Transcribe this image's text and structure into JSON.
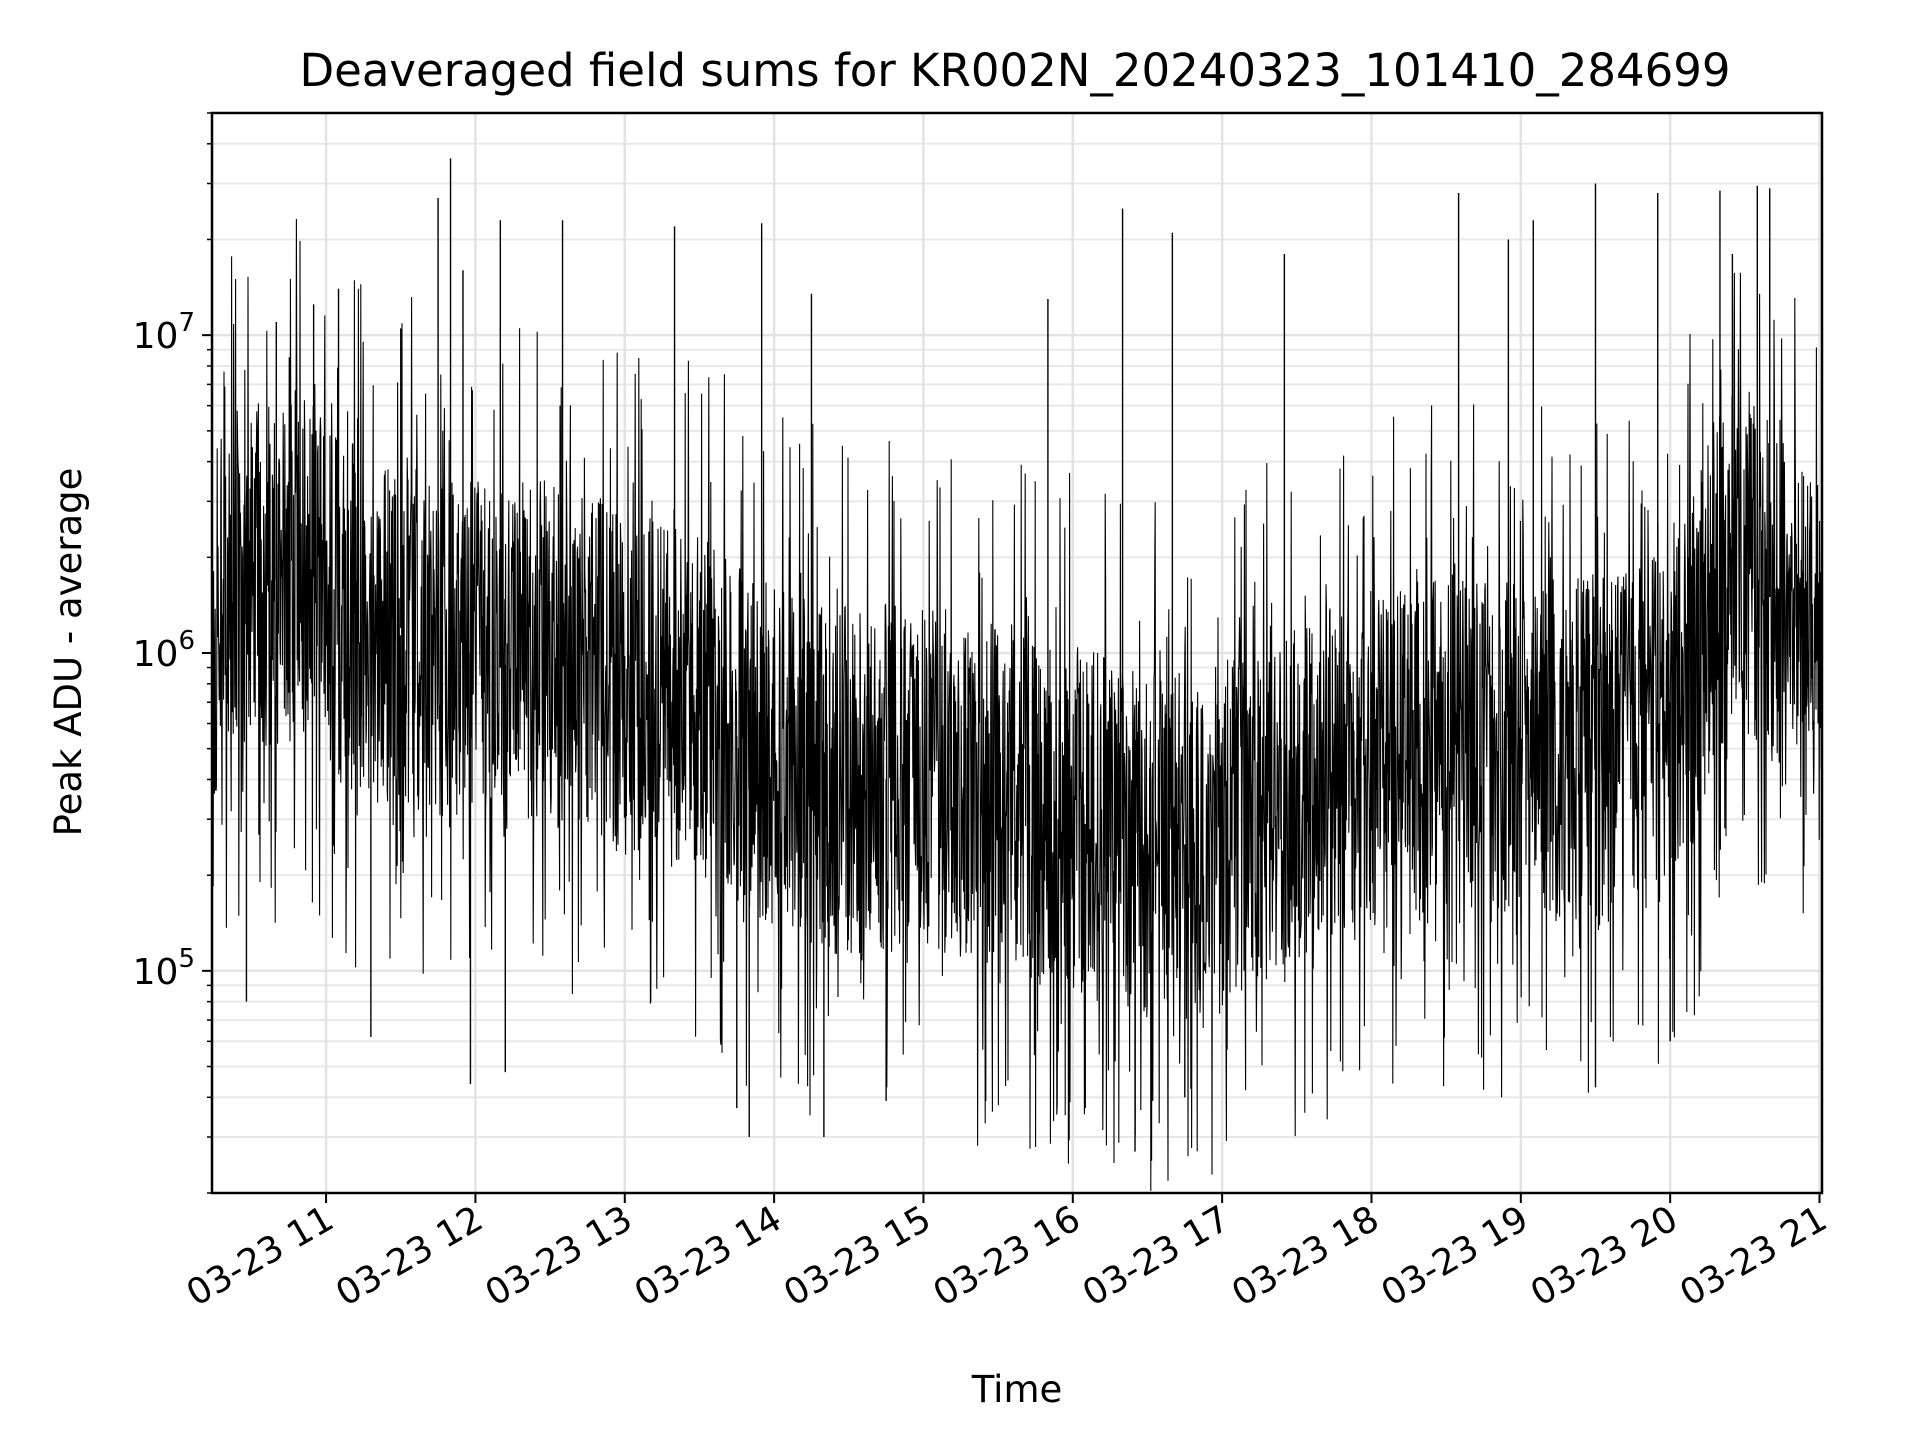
{
  "chart_data": {
    "type": "line",
    "title": "Deaveraged field sums for KR002N_20240323_101410_284699",
    "xlabel": "Time",
    "ylabel": "Peak ADU - average",
    "x_axis": {
      "type": "time",
      "start": "2024-03-23T10:14:10",
      "end": "2024-03-23T21:01:00"
    },
    "y_axis": {
      "scale": "log",
      "ylim": [
        20000,
        50000000
      ]
    },
    "grid": true,
    "legend": "none",
    "line_color": "#000000",
    "x_ticks": [
      {
        "value": "2024-03-23T11:00:00",
        "label": "03-23 11"
      },
      {
        "value": "2024-03-23T12:00:00",
        "label": "03-23 12"
      },
      {
        "value": "2024-03-23T13:00:00",
        "label": "03-23 13"
      },
      {
        "value": "2024-03-23T14:00:00",
        "label": "03-23 14"
      },
      {
        "value": "2024-03-23T15:00:00",
        "label": "03-23 15"
      },
      {
        "value": "2024-03-23T16:00:00",
        "label": "03-23 16"
      },
      {
        "value": "2024-03-23T17:00:00",
        "label": "03-23 17"
      },
      {
        "value": "2024-03-23T18:00:00",
        "label": "03-23 18"
      },
      {
        "value": "2024-03-23T19:00:00",
        "label": "03-23 19"
      },
      {
        "value": "2024-03-23T20:00:00",
        "label": "03-23 20"
      },
      {
        "value": "2024-03-23T21:00:00",
        "label": "03-23 21"
      }
    ],
    "y_ticks": [
      {
        "value": 100000,
        "base": "10",
        "exp": "5"
      },
      {
        "value": 1000000,
        "base": "10",
        "exp": "6"
      },
      {
        "value": 10000000,
        "base": "10",
        "exp": "7"
      }
    ],
    "series": [
      {
        "x": [
          "2024-03-23T10:14",
          "2024-03-23T10:20",
          "2024-03-23T10:30",
          "2024-03-23T10:40",
          "2024-03-23T10:50",
          "2024-03-23T11:00",
          "2024-03-23T11:10",
          "2024-03-23T11:20",
          "2024-03-23T11:30",
          "2024-03-23T11:40",
          "2024-03-23T11:50",
          "2024-03-23T12:00",
          "2024-03-23T12:10",
          "2024-03-23T12:20",
          "2024-03-23T12:30",
          "2024-03-23T12:40",
          "2024-03-23T12:50",
          "2024-03-23T13:00",
          "2024-03-23T13:10",
          "2024-03-23T13:20",
          "2024-03-23T13:30",
          "2024-03-23T13:40",
          "2024-03-23T13:50",
          "2024-03-23T14:00",
          "2024-03-23T14:10",
          "2024-03-23T14:20",
          "2024-03-23T14:30",
          "2024-03-23T14:40",
          "2024-03-23T14:50",
          "2024-03-23T15:00",
          "2024-03-23T15:10",
          "2024-03-23T15:20",
          "2024-03-23T15:30",
          "2024-03-23T15:40",
          "2024-03-23T15:50",
          "2024-03-23T16:00",
          "2024-03-23T16:10",
          "2024-03-23T16:20",
          "2024-03-23T16:30",
          "2024-03-23T16:40",
          "2024-03-23T16:50",
          "2024-03-23T17:00",
          "2024-03-23T17:10",
          "2024-03-23T17:20",
          "2024-03-23T17:30",
          "2024-03-23T17:40",
          "2024-03-23T17:50",
          "2024-03-23T18:00",
          "2024-03-23T18:10",
          "2024-03-23T18:20",
          "2024-03-23T18:30",
          "2024-03-23T18:40",
          "2024-03-23T18:50",
          "2024-03-23T19:00",
          "2024-03-23T19:10",
          "2024-03-23T19:20",
          "2024-03-23T19:30",
          "2024-03-23T19:40",
          "2024-03-23T19:50",
          "2024-03-23T20:00",
          "2024-03-23T20:10",
          "2024-03-23T20:20",
          "2024-03-23T20:30",
          "2024-03-23T20:40",
          "2024-03-23T20:50",
          "2024-03-23T21:00"
        ],
        "y": [
          1200000,
          1600000,
          1800000,
          1700000,
          2000000,
          1500000,
          1300000,
          1100000,
          1200000,
          1100000,
          1000000,
          1000000,
          900000,
          1000000,
          1000000,
          900000,
          900000,
          800000,
          800000,
          700000,
          700000,
          600000,
          500000,
          500000,
          450000,
          400000,
          400000,
          400000,
          400000,
          400000,
          400000,
          350000,
          350000,
          350000,
          300000,
          300000,
          280000,
          260000,
          250000,
          250000,
          250000,
          300000,
          300000,
          350000,
          350000,
          400000,
          400000,
          450000,
          450000,
          500000,
          500000,
          500000,
          500000,
          500000,
          500000,
          500000,
          500000,
          500000,
          550000,
          700000,
          900000,
          1800000,
          2000000,
          1500000,
          1200000,
          900000
        ],
        "spikes": [
          {
            "x": "2024-03-23T10:40",
            "y": 11000000
          },
          {
            "x": "2024-03-23T10:55",
            "y": 12500000
          },
          {
            "x": "2024-03-23T11:05",
            "y": 14000000
          },
          {
            "x": "2024-03-23T11:30",
            "y": 10500000
          },
          {
            "x": "2024-03-23T11:45",
            "y": 27000000
          },
          {
            "x": "2024-03-23T11:50",
            "y": 36000000
          },
          {
            "x": "2024-03-23T11:55",
            "y": 16000000
          },
          {
            "x": "2024-03-23T12:10",
            "y": 23000000
          },
          {
            "x": "2024-03-23T12:35",
            "y": 23000000
          },
          {
            "x": "2024-03-23T13:20",
            "y": 22000000
          },
          {
            "x": "2024-03-23T13:55",
            "y": 22500000
          },
          {
            "x": "2024-03-23T14:15",
            "y": 13500000
          },
          {
            "x": "2024-03-23T15:50",
            "y": 13000000
          },
          {
            "x": "2024-03-23T16:20",
            "y": 25000000
          },
          {
            "x": "2024-03-23T16:40",
            "y": 21000000
          },
          {
            "x": "2024-03-23T17:25",
            "y": 18000000
          },
          {
            "x": "2024-03-23T18:35",
            "y": 28000000
          },
          {
            "x": "2024-03-23T18:55",
            "y": 20000000
          },
          {
            "x": "2024-03-23T19:05",
            "y": 23000000
          },
          {
            "x": "2024-03-23T19:30",
            "y": 30000000
          },
          {
            "x": "2024-03-23T19:55",
            "y": 28000000
          },
          {
            "x": "2024-03-23T20:20",
            "y": 28500000
          },
          {
            "x": "2024-03-23T20:25",
            "y": 18000000
          },
          {
            "x": "2024-03-23T20:35",
            "y": 29500000
          },
          {
            "x": "2024-03-23T20:40",
            "y": 29000000
          }
        ],
        "dips": [
          {
            "x": "2024-03-23T10:28",
            "y": 80000
          },
          {
            "x": "2024-03-23T11:18",
            "y": 62000
          },
          {
            "x": "2024-03-23T11:58",
            "y": 44000
          },
          {
            "x": "2024-03-23T12:12",
            "y": 48000
          },
          {
            "x": "2024-03-23T13:45",
            "y": 37000
          },
          {
            "x": "2024-03-23T13:50",
            "y": 30000
          },
          {
            "x": "2024-03-23T14:20",
            "y": 30000
          },
          {
            "x": "2024-03-23T14:45",
            "y": 39000
          },
          {
            "x": "2024-03-23T15:25",
            "y": 39000
          },
          {
            "x": "2024-03-23T16:05",
            "y": 37000
          },
          {
            "x": "2024-03-23T16:25",
            "y": 27000
          },
          {
            "x": "2024-03-23T16:45",
            "y": 40000
          },
          {
            "x": "2024-03-23T19:30",
            "y": 43000
          },
          {
            "x": "2024-03-23T20:00",
            "y": 60000
          }
        ]
      }
    ]
  }
}
